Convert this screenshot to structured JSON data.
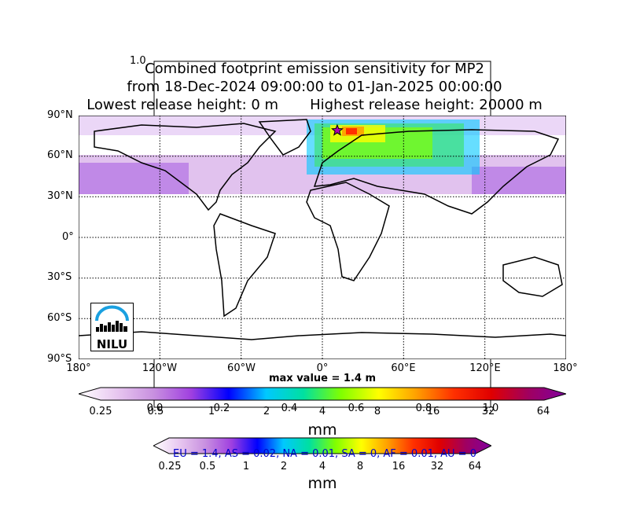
{
  "title": {
    "line1": "Combined footprint emission sensitivity for MP2",
    "line2": "from 18-Dec-2024 09:00:00 to 01-Jan-2025 00:00:00",
    "line3": "Lowest release height: 0 m       Highest release height: 20000 m"
  },
  "map": {
    "lat_ticks": [
      "90°N",
      "60°N",
      "30°N",
      "0°",
      "30°S",
      "60°S",
      "90°S"
    ],
    "lon_ticks": [
      "180°",
      "120°W",
      "60°W",
      "0°",
      "60°E",
      "120°E",
      "180°"
    ],
    "release_marker": {
      "lon": 11,
      "lat": 79
    },
    "logo_text": "NILU",
    "max_value": "max value = 1.4 m"
  },
  "colorbar_main": {
    "ticks": [
      "0.25",
      "0.5",
      "1",
      "2",
      "4",
      "8",
      "16",
      "32",
      "64"
    ],
    "unit": "mm",
    "colors": [
      "#ffffff",
      "#e8c8f0",
      "#c890e0",
      "#a040e0",
      "#0000ff",
      "#00c8ff",
      "#00e0a0",
      "#80ff00",
      "#ffff00",
      "#ffa000",
      "#ff3000",
      "#e00000",
      "#a00060",
      "#8000a0"
    ]
  },
  "colorbar_inner": {
    "ticks": [
      "0.25",
      "0.5",
      "1",
      "2",
      "4",
      "8",
      "16",
      "32",
      "64"
    ],
    "unit": "mm"
  },
  "stray_axis": {
    "top_label": "1.0",
    "ticks": [
      "0.0",
      "0.2",
      "0.4",
      "0.6",
      "0.8",
      "1.0"
    ]
  },
  "region_summary": "EU = 1.4,  AS = 0.02,  NA = 0.01,  SA = 0,  AF = 0.01,  AU = 0"
}
